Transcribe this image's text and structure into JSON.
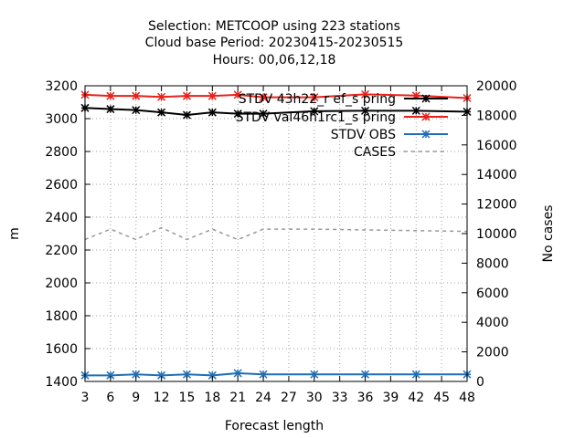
{
  "chart_data": {
    "type": "line",
    "title_lines": [
      "Selection: METCOOP using   223 stations",
      "Cloud base   Period: 20230415-20230515",
      "Hours:  00,06,12,18"
    ],
    "xlabel": "Forecast length",
    "ylabel": "m",
    "y2label": "No cases",
    "x_ticks": [
      3,
      6,
      9,
      12,
      15,
      18,
      21,
      24,
      27,
      30,
      33,
      36,
      39,
      42,
      45,
      48
    ],
    "xlim": [
      3,
      48
    ],
    "ylim": [
      1400,
      3200
    ],
    "y_ticks": [
      1400,
      1600,
      1800,
      2000,
      2200,
      2400,
      2600,
      2800,
      3000,
      3200
    ],
    "y2lim": [
      0,
      20000
    ],
    "y2_ticks": [
      0,
      2000,
      4000,
      6000,
      8000,
      10000,
      12000,
      14000,
      16000,
      18000,
      20000
    ],
    "grid": true,
    "legend_position": "top-right",
    "series": [
      {
        "name": "STDV 43h22_r ef_s pring",
        "color": "#000000",
        "axis": "y",
        "x": [
          3,
          6,
          9,
          12,
          15,
          18,
          21,
          24,
          30,
          36,
          42,
          48
        ],
        "values": [
          3065,
          3058,
          3052,
          3038,
          3022,
          3038,
          3030,
          3030,
          3045,
          3048,
          3048,
          3042
        ]
      },
      {
        "name": "STDV val46h1rc1_s pring",
        "color": "#e8221a",
        "axis": "y",
        "x": [
          3,
          6,
          9,
          12,
          15,
          18,
          21,
          24,
          30,
          36,
          42,
          48
        ],
        "values": [
          3145,
          3138,
          3138,
          3132,
          3138,
          3138,
          3145,
          3130,
          3130,
          3148,
          3140,
          3125
        ]
      },
      {
        "name": "STDV OBS",
        "color": "#1f6fb5",
        "axis": "y",
        "x": [
          3,
          6,
          9,
          12,
          15,
          18,
          21,
          24,
          30,
          36,
          42,
          48
        ],
        "values": [
          1437,
          1437,
          1443,
          1437,
          1443,
          1437,
          1450,
          1443,
          1443,
          1443,
          1443,
          1443
        ]
      },
      {
        "name": "CASES",
        "color": "#999999",
        "axis": "y2",
        "dashed": true,
        "x": [
          3,
          6,
          9,
          12,
          15,
          18,
          21,
          24,
          30,
          36,
          42,
          48
        ],
        "values": [
          9600,
          10300,
          9600,
          10400,
          9600,
          10300,
          9600,
          10300,
          10300,
          10250,
          10200,
          10150
        ]
      }
    ]
  }
}
